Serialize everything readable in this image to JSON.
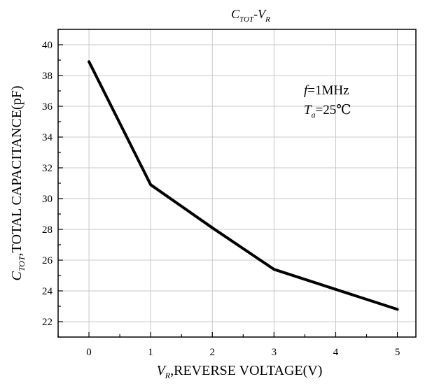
{
  "chart_data": {
    "type": "line",
    "title": {
      "main": "C",
      "sub1": "TOT",
      "sep": "-V",
      "sub2": "R"
    },
    "xlabel": {
      "main": "V",
      "sub": "R",
      "rest": ",REVERSE VOLTAGE(V)"
    },
    "ylabel": {
      "main": "C",
      "sub": "TOT",
      "rest": ",TOTAL CAPACITANCE(pF)"
    },
    "annotations": {
      "freq": {
        "italic": "f",
        "rest": "=1MHz"
      },
      "temp": {
        "italic": "T",
        "sub": "a",
        "rest": "=25℃"
      }
    },
    "xlim": [
      -0.5,
      5.3
    ],
    "ylim": [
      21,
      41
    ],
    "xticks": [
      0,
      1,
      2,
      3,
      4,
      5
    ],
    "yticks": [
      22,
      24,
      26,
      28,
      30,
      32,
      34,
      36,
      38,
      40
    ],
    "grid": true,
    "series": [
      {
        "x": [
          0,
          1,
          2,
          3,
          4,
          5
        ],
        "values": [
          38.9,
          30.9,
          28.1,
          25.4,
          24.1,
          22.8
        ]
      }
    ],
    "line_color": "#000000",
    "grid_color": "#c8c8c8"
  }
}
